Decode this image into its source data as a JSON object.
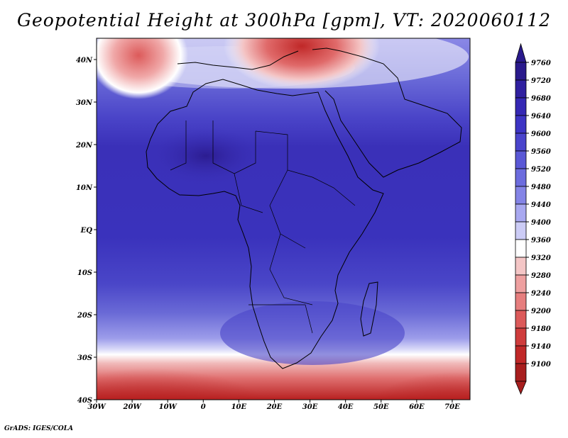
{
  "title": "Geopotential Height at 300hPa [gpm], VT: 2020060112",
  "credit": "GrADS: IGES/COLA",
  "map": {
    "projection": "latlon",
    "lon_range": [
      -30,
      75
    ],
    "lat_range": [
      -40,
      45
    ],
    "lon_ticks": [
      "30W",
      "20W",
      "10W",
      "0",
      "10E",
      "20E",
      "30E",
      "40E",
      "50E",
      "60E",
      "70E"
    ],
    "lat_ticks": [
      "40N",
      "30N",
      "20N",
      "10N",
      "EQ",
      "10S",
      "20S",
      "30S",
      "40S"
    ]
  },
  "colorbar": {
    "labels": [
      "9760",
      "9720",
      "9680",
      "9640",
      "9600",
      "9560",
      "9520",
      "9480",
      "9440",
      "9400",
      "9360",
      "9320",
      "9280",
      "9240",
      "9200",
      "9180",
      "9140",
      "9100"
    ],
    "colors": [
      "#2a1a8c",
      "#3020a0",
      "#3528b4",
      "#3d34c4",
      "#4a44cc",
      "#5a58d6",
      "#6c6cde",
      "#8484e6",
      "#a8a8f0",
      "#ccccf6",
      "#ffffff",
      "#f4c6c6",
      "#eea0a0",
      "#e67e7e",
      "#dc5a5a",
      "#cf3c3c",
      "#c02828",
      "#a81e1e"
    ]
  },
  "chart_data": {
    "type": "heatmap",
    "title": "Geopotential Height at 300hPa [gpm], VT: 2020060112",
    "variable": "Geopotential Height at 300hPa",
    "units": "gpm",
    "valid_time": "2020060112",
    "levels": [
      9100,
      9140,
      9180,
      9200,
      9240,
      9280,
      9320,
      9360,
      9400,
      9440,
      9480,
      9520,
      9560,
      9600,
      9640,
      9680,
      9720,
      9760
    ],
    "features": [
      {
        "region": "Sahara / West Africa (~20N, 10E)",
        "value_approx": 9720
      },
      {
        "region": "Tropical Africa (10N-10S)",
        "value_approx": 9680
      },
      {
        "region": "Mediterranean / Greece (~38N, 25E)",
        "value_approx": 9200
      },
      {
        "region": "Atlantic off Iberia (~42N, 20W)",
        "value_approx": 9280
      },
      {
        "region": "Southern Ocean (~38S)",
        "value_approx": 9100
      }
    ]
  }
}
